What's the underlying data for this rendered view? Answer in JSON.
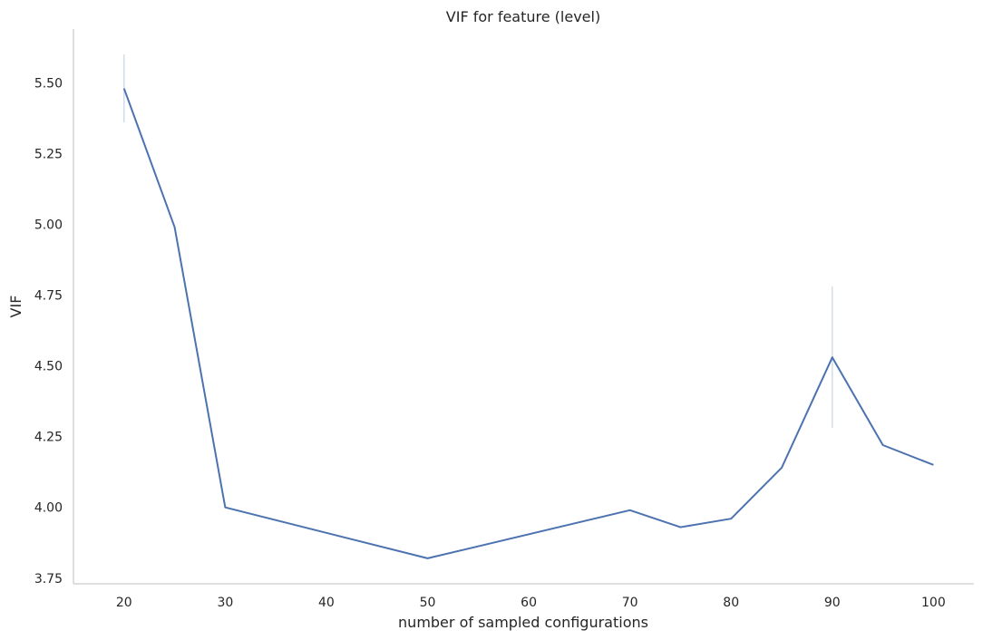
{
  "chart_data": {
    "type": "line",
    "title": "VIF for feature (level)",
    "xlabel": "number of sampled configurations",
    "ylabel": "VIF",
    "xlim": [
      15,
      104
    ],
    "ylim": [
      3.73,
      5.69
    ],
    "xticks": [
      20,
      30,
      40,
      50,
      60,
      70,
      80,
      90,
      100
    ],
    "yticks": [
      3.75,
      4.0,
      4.25,
      4.5,
      4.75,
      5.0,
      5.25,
      5.5
    ],
    "ytick_labels": [
      "3.75",
      "4.00",
      "4.25",
      "4.50",
      "4.75",
      "5.00",
      "5.25",
      "5.50"
    ],
    "grid": false,
    "series": [
      {
        "color": "#4c72b0",
        "x": [
          20,
          25,
          30,
          50,
          70,
          75,
          80,
          85,
          90,
          95,
          100
        ],
        "y": [
          5.48,
          4.99,
          4.0,
          3.82,
          3.99,
          3.93,
          3.96,
          4.14,
          4.53,
          4.22,
          4.15
        ]
      }
    ],
    "error_bars": [
      {
        "x": 20,
        "low": 5.36,
        "high": 5.6
      },
      {
        "x": 90,
        "low": 4.28,
        "high": 4.78
      }
    ]
  }
}
